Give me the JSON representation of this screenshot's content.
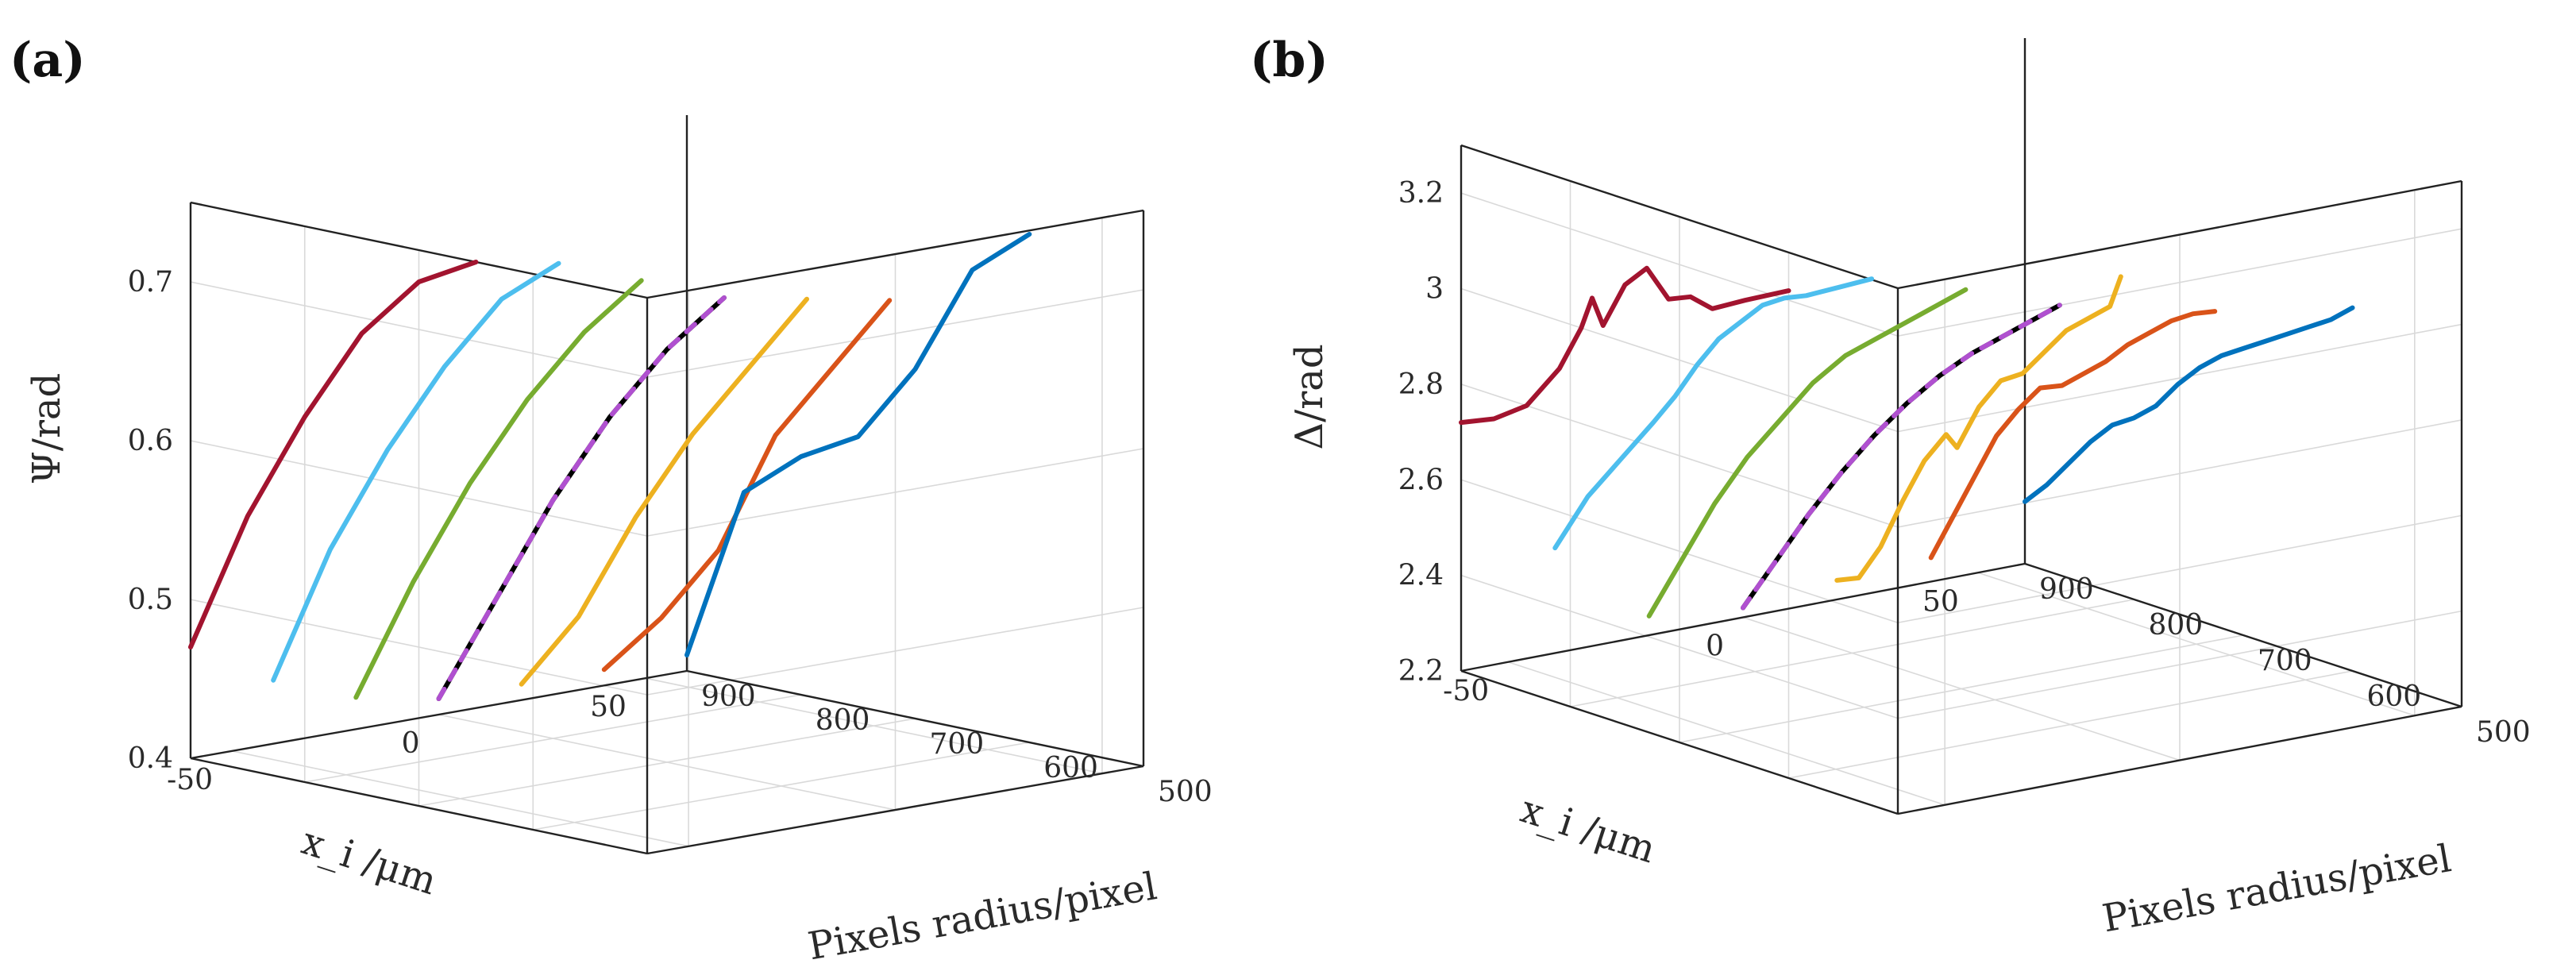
{
  "chart_data": [
    {
      "panel": "(a)",
      "type": "line",
      "projection": "3d",
      "zlabel": "Ψ/rad",
      "xlabel": "x_i /μm",
      "ylabel": "Pixels radius/pixel",
      "xlim": [
        -60,
        60
      ],
      "ylim": [
        500,
        900
      ],
      "zlim": [
        0.4,
        0.75
      ],
      "x_ticks": [
        "-50",
        "0",
        "50"
      ],
      "y_ticks": [
        "500",
        "600",
        "700",
        "800",
        "900"
      ],
      "z_ticks": [
        "0.4",
        "0.5",
        "0.6",
        "0.7"
      ],
      "series": [
        {
          "name": "dark red",
          "color": "#A2142F",
          "x": -60,
          "points": [
            [
              900,
              0.47
            ],
            [
              850,
              0.56
            ],
            [
              800,
              0.63
            ],
            [
              750,
              0.69
            ],
            [
              700,
              0.73
            ],
            [
              650,
              0.75
            ]
          ]
        },
        {
          "name": "light blue",
          "color": "#4DBEEE",
          "x": -40,
          "points": [
            [
              900,
              0.44
            ],
            [
              850,
              0.53
            ],
            [
              800,
              0.6
            ],
            [
              750,
              0.66
            ],
            [
              700,
              0.71
            ],
            [
              650,
              0.74
            ]
          ]
        },
        {
          "name": "green",
          "color": "#77AC30",
          "x": -20,
          "points": [
            [
              900,
              0.42
            ],
            [
              850,
              0.5
            ],
            [
              800,
              0.57
            ],
            [
              750,
              0.63
            ],
            [
              700,
              0.68
            ],
            [
              650,
              0.72
            ]
          ]
        },
        {
          "name": "black/purple dashed",
          "color": "#000000",
          "dash_color": "#B050D0",
          "x": 0,
          "points": [
            [
              900,
              0.41
            ],
            [
              850,
              0.48
            ],
            [
              800,
              0.55
            ],
            [
              750,
              0.61
            ],
            [
              700,
              0.66
            ],
            [
              650,
              0.7
            ]
          ]
        },
        {
          "name": "yellow",
          "color": "#EDB120",
          "x": 20,
          "points": [
            [
              900,
              0.41
            ],
            [
              850,
              0.46
            ],
            [
              800,
              0.53
            ],
            [
              750,
              0.59
            ],
            [
              700,
              0.64
            ],
            [
              650,
              0.69
            ]
          ]
        },
        {
          "name": "orange",
          "color": "#D95319",
          "x": 40,
          "points": [
            [
              900,
              0.41
            ],
            [
              850,
              0.45
            ],
            [
              800,
              0.5
            ],
            [
              750,
              0.58
            ],
            [
              700,
              0.63
            ],
            [
              650,
              0.68
            ]
          ]
        },
        {
          "name": "blue",
          "color": "#0072BD",
          "x": 60,
          "points": [
            [
              900,
              0.41
            ],
            [
              850,
              0.52
            ],
            [
              800,
              0.55
            ],
            [
              750,
              0.57
            ],
            [
              700,
              0.62
            ],
            [
              650,
              0.69
            ],
            [
              600,
              0.72
            ]
          ]
        }
      ]
    },
    {
      "panel": "(b)",
      "type": "line",
      "projection": "3d",
      "zlabel": "Δ/rad",
      "xlabel": "x_i /μm",
      "ylabel": "Pixels radius/pixel",
      "xlim": [
        -60,
        60
      ],
      "ylim": [
        500,
        900
      ],
      "zlim": [
        2.2,
        3.3
      ],
      "x_ticks": [
        "-50",
        "0",
        "50"
      ],
      "y_ticks": [
        "500",
        "600",
        "700",
        "800",
        "900"
      ],
      "z_ticks": [
        "2.2",
        "2.4",
        "2.6",
        "2.8",
        "3",
        "3.2"
      ],
      "series": [
        {
          "name": "dark red",
          "color": "#A2142F",
          "x": -60,
          "points": [
            [
              900,
              2.72
            ],
            [
              870,
              2.75
            ],
            [
              840,
              2.8
            ],
            [
              810,
              2.9
            ],
            [
              790,
              3.0
            ],
            [
              780,
              3.07
            ],
            [
              770,
              3.02
            ],
            [
              750,
              3.12
            ],
            [
              730,
              3.17
            ],
            [
              710,
              3.12
            ],
            [
              690,
              3.14
            ],
            [
              670,
              3.13
            ],
            [
              640,
              3.17
            ],
            [
              600,
              3.22
            ]
          ]
        },
        {
          "name": "light blue",
          "color": "#4DBEEE",
          "x": -40,
          "points": [
            [
              900,
              2.42
            ],
            [
              870,
              2.55
            ],
            [
              840,
              2.65
            ],
            [
              810,
              2.75
            ],
            [
              790,
              2.82
            ],
            [
              770,
              2.9
            ],
            [
              750,
              2.97
            ],
            [
              730,
              3.02
            ],
            [
              710,
              3.07
            ],
            [
              690,
              3.1
            ],
            [
              670,
              3.12
            ],
            [
              640,
              3.16
            ],
            [
              610,
              3.2
            ]
          ]
        },
        {
          "name": "green",
          "color": "#77AC30",
          "x": -20,
          "points": [
            [
              900,
              2.24
            ],
            [
              870,
              2.38
            ],
            [
              840,
              2.52
            ],
            [
              810,
              2.64
            ],
            [
              780,
              2.74
            ],
            [
              750,
              2.84
            ],
            [
              720,
              2.92
            ],
            [
              690,
              2.98
            ],
            [
              660,
              3.04
            ],
            [
              630,
              3.1
            ],
            [
              610,
              3.14
            ]
          ]
        },
        {
          "name": "black/purple dashed",
          "color": "#000000",
          "dash_color": "#B050D0",
          "x": 0,
          "points": [
            [
              900,
              2.22
            ],
            [
              870,
              2.34
            ],
            [
              840,
              2.46
            ],
            [
              810,
              2.57
            ],
            [
              780,
              2.67
            ],
            [
              750,
              2.76
            ],
            [
              720,
              2.84
            ],
            [
              690,
              2.91
            ],
            [
              660,
              2.97
            ],
            [
              630,
              3.03
            ],
            [
              610,
              3.07
            ]
          ]
        },
        {
          "name": "yellow",
          "color": "#EDB120",
          "x": 20,
          "points": [
            [
              900,
              2.24
            ],
            [
              880,
              2.26
            ],
            [
              860,
              2.34
            ],
            [
              840,
              2.45
            ],
            [
              820,
              2.55
            ],
            [
              800,
              2.62
            ],
            [
              790,
              2.6
            ],
            [
              770,
              2.7
            ],
            [
              750,
              2.77
            ],
            [
              730,
              2.8
            ],
            [
              710,
              2.86
            ],
            [
              690,
              2.92
            ],
            [
              670,
              2.96
            ],
            [
              650,
              3.0
            ],
            [
              640,
              3.07
            ]
          ]
        },
        {
          "name": "orange",
          "color": "#D95319",
          "x": 40,
          "points": [
            [
              900,
              2.25
            ],
            [
              880,
              2.35
            ],
            [
              860,
              2.45
            ],
            [
              840,
              2.55
            ],
            [
              820,
              2.62
            ],
            [
              800,
              2.68
            ],
            [
              780,
              2.7
            ],
            [
              760,
              2.74
            ],
            [
              740,
              2.78
            ],
            [
              720,
              2.83
            ],
            [
              700,
              2.87
            ],
            [
              680,
              2.91
            ],
            [
              660,
              2.94
            ],
            [
              640,
              2.96
            ]
          ]
        },
        {
          "name": "blue",
          "color": "#0072BD",
          "x": 60,
          "points": [
            [
              900,
              2.33
            ],
            [
              880,
              2.38
            ],
            [
              860,
              2.44
            ],
            [
              840,
              2.5
            ],
            [
              820,
              2.55
            ],
            [
              800,
              2.58
            ],
            [
              780,
              2.62
            ],
            [
              760,
              2.68
            ],
            [
              740,
              2.73
            ],
            [
              720,
              2.77
            ],
            [
              700,
              2.8
            ],
            [
              680,
              2.83
            ],
            [
              660,
              2.86
            ],
            [
              640,
              2.89
            ],
            [
              620,
              2.92
            ],
            [
              600,
              2.96
            ]
          ]
        }
      ]
    }
  ]
}
